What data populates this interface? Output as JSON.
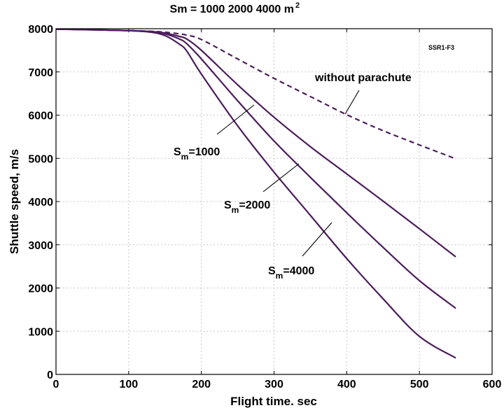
{
  "chart_data": {
    "type": "line",
    "title": "Sm = 1000 2000 4000 m",
    "title_sup": "2",
    "xlabel": "Flight time. sec",
    "ylabel": "Shuttle speed, m/s",
    "xlim": [
      0,
      600
    ],
    "ylim": [
      0,
      8000
    ],
    "xticks": [
      "0",
      "100",
      "200",
      "300",
      "400",
      "500",
      "600"
    ],
    "yticks": [
      "0",
      "1000",
      "2000",
      "3000",
      "4000",
      "5000",
      "6000",
      "7000",
      "8000"
    ],
    "grid": true,
    "color": "#4b1c5a",
    "series": [
      {
        "name": "without parachute",
        "dashed": true,
        "x": [
          0,
          50,
          100,
          130,
          150,
          170,
          180,
          200,
          250,
          300,
          350,
          400,
          450,
          500,
          550
        ],
        "y": [
          7990,
          7975,
          7955,
          7940,
          7920,
          7880,
          7850,
          7750,
          7300,
          6850,
          6430,
          6010,
          5640,
          5310,
          4990
        ]
      },
      {
        "name": "1000",
        "x": [
          0,
          50,
          100,
          130,
          150,
          170,
          180,
          200,
          250,
          300,
          350,
          400,
          450,
          500,
          550
        ],
        "y": [
          7990,
          7975,
          7955,
          7935,
          7900,
          7820,
          7760,
          7500,
          6700,
          5950,
          5270,
          4640,
          4010,
          3370,
          2720
        ]
      },
      {
        "name": "2000",
        "x": [
          0,
          50,
          100,
          130,
          150,
          170,
          180,
          200,
          250,
          300,
          350,
          400,
          450,
          500,
          550
        ],
        "y": [
          7990,
          7975,
          7955,
          7930,
          7880,
          7760,
          7650,
          7300,
          6330,
          5400,
          4560,
          3740,
          2940,
          2170,
          1530
        ]
      },
      {
        "name": "4000",
        "x": [
          0,
          50,
          100,
          130,
          150,
          170,
          180,
          200,
          250,
          300,
          350,
          400,
          450,
          500,
          550
        ],
        "y": [
          7990,
          7975,
          7955,
          7920,
          7840,
          7640,
          7480,
          6950,
          5750,
          4680,
          3680,
          2680,
          1750,
          880,
          380
        ]
      }
    ],
    "annotations": {
      "tag": "SSR1-F3",
      "no_parachute": "without parachute",
      "s1000_base": "S",
      "s1000_sub": "m",
      "s1000_val": "=1000",
      "s2000_base": "S",
      "s2000_sub": "m",
      "s2000_val": "=2000",
      "s4000_base": "S",
      "s4000_sub": "m",
      "s4000_val": "=4000"
    }
  }
}
